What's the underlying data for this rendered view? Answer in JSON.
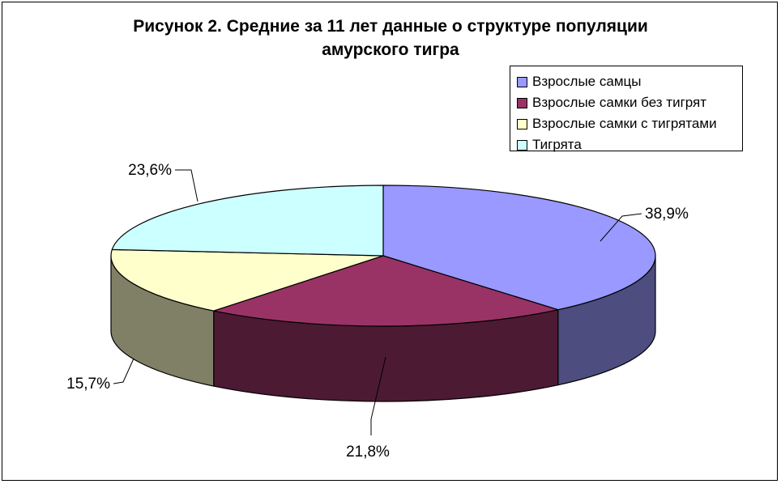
{
  "chart_data": {
    "type": "pie",
    "style": "3d",
    "title_lines": [
      "Рисунок 2. Средние за 11 лет данные о структуре популяции",
      "амурского тигра"
    ],
    "categories": [
      "Взрослые самцы",
      "Взрослые самки без тигрят",
      "Взрослые самки с тигрятами",
      "Тигрята"
    ],
    "values": [
      38.9,
      21.8,
      15.7,
      23.6
    ],
    "data_labels": [
      "38,9%",
      "21,8%",
      "15,7%",
      "23,6%"
    ],
    "colors": [
      "#9999ff",
      "#993366",
      "#ffffcc",
      "#ccffff"
    ],
    "legend_position": "top-right"
  }
}
